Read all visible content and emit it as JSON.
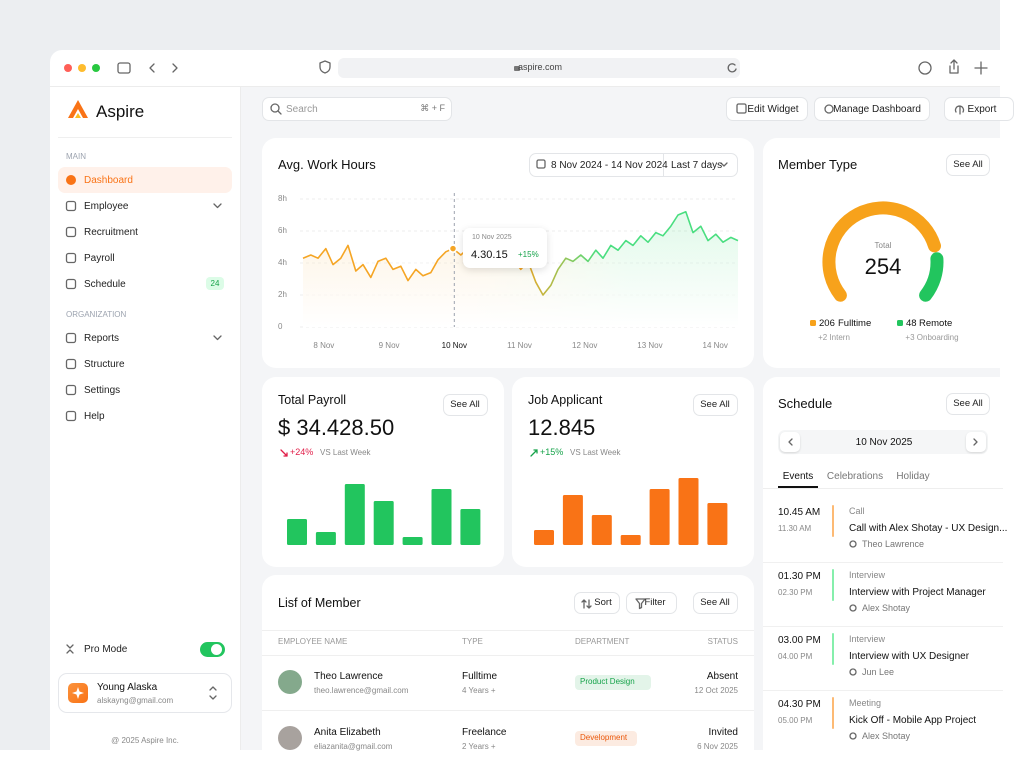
{
  "browser": {
    "url": "aspire.com"
  },
  "sidebar": {
    "brand": "Aspire",
    "sections": [
      {
        "title": "MAIN",
        "items": [
          {
            "label": "Dashboard"
          },
          {
            "label": "Employee"
          },
          {
            "label": "Recruitment"
          },
          {
            "label": "Payroll"
          },
          {
            "label": "Schedule",
            "badge": 24
          }
        ]
      },
      {
        "title": "ORGANIZATION",
        "items": [
          {
            "label": "Reports"
          },
          {
            "label": "Structure"
          },
          {
            "label": "Settings"
          },
          {
            "label": "Help"
          }
        ]
      }
    ],
    "pro_mode": "Pro Mode",
    "user": {
      "name": "Young Alaska",
      "email": "alskayng@gmail.com"
    },
    "footer": "@ 2025 Aspire Inc."
  },
  "toolbar": {
    "search": "Search",
    "shortcut": "⌘ + F",
    "buttons": [
      "Edit Widget",
      "Manage Dashboard",
      "Export"
    ]
  },
  "chart_data": [
    {
      "type": "line",
      "title": "Avg. Work Hours",
      "date_range": "8 Nov 2024 - 14 Nov 2024",
      "period": "Last 7 days",
      "x": [
        7.68,
        7.8,
        7.91,
        8.03,
        8.14,
        8.26,
        8.37,
        8.49,
        8.6,
        8.72,
        8.83,
        8.95,
        9.06,
        9.18,
        9.29,
        9.41,
        9.52,
        9.64,
        9.75,
        9.87,
        9.98,
        10.1,
        10.21,
        10.33,
        10.44,
        10.56,
        10.67,
        10.79,
        10.9,
        11.02,
        11.13,
        11.25,
        11.36,
        11.48,
        11.59,
        11.71,
        11.82,
        11.94,
        12.05,
        12.17,
        12.28,
        12.4,
        12.51,
        12.63,
        12.74,
        12.86,
        12.97,
        13.09,
        13.2,
        13.32,
        13.43,
        13.55,
        13.66,
        13.78,
        13.89,
        14.01,
        14.12,
        14.24,
        14.35
      ],
      "series": [
        {
          "colors": [
            "#f5a524",
            "#4ade80"
          ],
          "values": [
            4.3,
            4.5,
            4.3,
            4.9,
            3.9,
            4.3,
            5.1,
            3.5,
            3.9,
            3.1,
            4.1,
            4.3,
            3.6,
            3.8,
            2.9,
            3.6,
            3.2,
            3.4,
            4.2,
            4.7,
            4.9,
            4.5,
            4.9,
            4.3,
            4.7,
            4.1,
            4.4,
            4.1,
            4.3,
            3.6,
            4.1,
            2.8,
            2.0,
            2.6,
            3.6,
            4.3,
            4.1,
            4.5,
            4.1,
            4.8,
            4.3,
            5.1,
            4.8,
            5.4,
            5.1,
            5.7,
            5.3,
            5.9,
            5.7,
            6.3,
            7.0,
            7.2,
            5.9,
            6.3,
            5.4,
            5.8,
            5.3,
            5.6,
            5.4
          ]
        }
      ],
      "xlim": [
        7.68,
        14.35
      ],
      "xticks": [
        {
          "value": 8,
          "label": "8 Nov"
        },
        {
          "value": 9,
          "label": "9 Nov"
        },
        {
          "value": 10,
          "label": "10 Nov"
        },
        {
          "value": 11,
          "label": "11 Nov"
        },
        {
          "value": 12,
          "label": "12 Nov"
        },
        {
          "value": 13,
          "label": "13 Nov"
        },
        {
          "value": 14,
          "label": "14 Nov"
        }
      ],
      "ylim": [
        0,
        8
      ],
      "yticks": [
        0,
        {
          "value": 2,
          "label": "2h"
        },
        {
          "value": 4,
          "label": "4h"
        },
        {
          "value": 6,
          "label": "6h"
        },
        {
          "value": 8,
          "label": "8h"
        }
      ],
      "grid": true,
      "tooltip": {
        "x": 10,
        "date": "10 Nov 2025",
        "value": "4.30.15",
        "change": "+15%"
      }
    },
    {
      "type": "bar",
      "title": "Total Payroll",
      "action": "See All",
      "total": "$ 34.428.50",
      "change": "+24%",
      "change_note": "VS Last Week",
      "trend": "down",
      "color": "#22c55e",
      "values": [
        26,
        13,
        61,
        44,
        8,
        56,
        36
      ]
    },
    {
      "type": "bar",
      "title": "Job Applicant",
      "action": "See All",
      "total": "12.845",
      "change": "+15%",
      "change_note": "VS Last Week",
      "trend": "up",
      "color": "#f97316",
      "values": [
        15,
        50,
        30,
        10,
        56,
        67,
        42
      ]
    },
    {
      "type": "gauge",
      "title": "Member Type",
      "action": "See All",
      "center_label": "Total",
      "total": 254,
      "categories": [
        "Fulltime",
        "Remote"
      ],
      "values": [
        206,
        48
      ],
      "colors": [
        "#f7a21b",
        "#22c55e"
      ],
      "notes": [
        "+2 Intern",
        "+3 Onboarding"
      ]
    }
  ],
  "schedule": {
    "title": "Schedule",
    "action": "See All",
    "date": "10 Nov 2025",
    "tabs": [
      "Events",
      "Celebrations",
      "Holiday"
    ],
    "events": [
      {
        "start": "10.45 AM",
        "end": "11.30 AM",
        "type": "Call",
        "title": "Call with Alex Shotay - UX Design...",
        "person": "Theo Lawrence",
        "color": "#fdba74"
      },
      {
        "start": "01.30 PM",
        "end": "02.30 PM",
        "type": "Interview",
        "title": "Interview with Project Manager",
        "person": "Alex Shotay",
        "color": "#86efac"
      },
      {
        "start": "03.00 PM",
        "end": "04.00 PM",
        "type": "Interview",
        "title": "Interview with UX Designer",
        "person": "Jun Lee",
        "color": "#86efac"
      },
      {
        "start": "04.30 PM",
        "end": "05.00 PM",
        "type": "Meeting",
        "title": "Kick Off - Mobile App Project",
        "person": "Alex Shotay",
        "color": "#fdba74"
      }
    ]
  },
  "members": {
    "title": "Lisf of Member",
    "buttons": [
      "Sort",
      "Filter",
      "See All"
    ],
    "columns": [
      "EMPLOYEE NAME",
      "TYPE",
      "DEPARTMENT",
      "STATUS"
    ],
    "rows": [
      {
        "name": "Theo Lawrence",
        "email": "theo.lawrence@gmail.com",
        "type": "Fulltime",
        "tenure": "4 Years +",
        "department": "Product Design",
        "department_color": "#16a34a",
        "status": "Absent",
        "date": "12 Oct 2025"
      },
      {
        "name": "Anita Elizabeth",
        "email": "eliazanita@gmail.com",
        "type": "Freelance",
        "tenure": "2 Years +",
        "department": "Development",
        "department_color": "#ea580c",
        "status": "Invited",
        "date": "6 Nov 2025"
      }
    ]
  }
}
